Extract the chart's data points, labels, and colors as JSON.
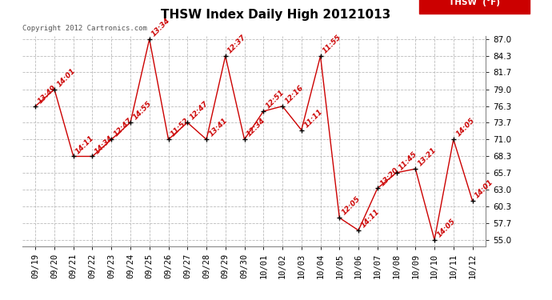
{
  "title": "THSW Index Daily High 20121013",
  "copyright": "Copyright 2012 Cartronics.com",
  "legend_label": "THSW  (°F)",
  "legend_bg": "#cc0000",
  "legend_text_color": "#ffffff",
  "background_color": "#ffffff",
  "grid_color": "#bbbbbb",
  "line_color": "#cc0000",
  "marker_color": "#000000",
  "annotation_color": "#cc0000",
  "dates": [
    "09/19",
    "09/20",
    "09/21",
    "09/22",
    "09/23",
    "09/24",
    "09/25",
    "09/26",
    "09/27",
    "09/28",
    "09/29",
    "09/30",
    "10/01",
    "10/02",
    "10/03",
    "10/04",
    "10/05",
    "10/06",
    "10/07",
    "10/08",
    "10/09",
    "10/10",
    "10/11",
    "10/12"
  ],
  "values": [
    76.3,
    79.0,
    68.3,
    68.3,
    71.0,
    73.7,
    87.0,
    71.0,
    73.7,
    71.0,
    84.3,
    71.0,
    75.5,
    76.3,
    72.5,
    84.3,
    58.5,
    56.5,
    63.2,
    65.7,
    66.3,
    55.0,
    71.0,
    61.2
  ],
  "annotations": [
    "13:49",
    "14:01",
    "14:11",
    "14:34",
    "12:47",
    "14:55",
    "13:34",
    "11:52",
    "12:47",
    "13:41",
    "12:37",
    "12:34",
    "12:51",
    "12:16",
    "11:11",
    "11:55",
    "12:05",
    "14:11",
    "13:20",
    "11:45",
    "13:21",
    "14:05",
    "14:05",
    "14:01"
  ],
  "ylim": [
    55.0,
    87.0
  ],
  "yticks": [
    55.0,
    57.7,
    60.3,
    63.0,
    65.7,
    68.3,
    71.0,
    73.7,
    76.3,
    79.0,
    81.7,
    84.3,
    87.0
  ],
  "title_fontsize": 11,
  "annotation_fontsize": 6.5,
  "axis_fontsize": 7.5,
  "copyright_fontsize": 6.5
}
